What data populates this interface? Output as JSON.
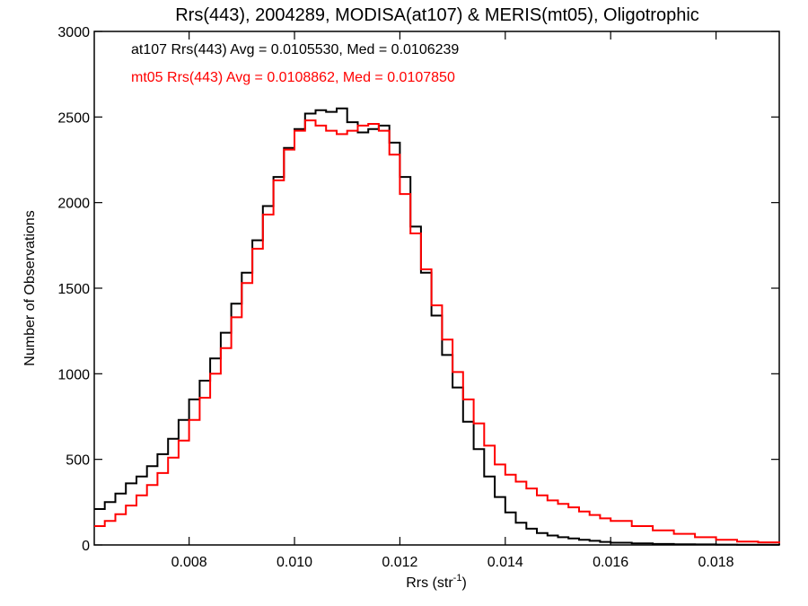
{
  "chart_data": {
    "type": "step",
    "title": "Rrs(443), 2004289, MODISA(at107) & MERIS(mt05), Oligotrophic",
    "xlabel_main": "Rrs (str",
    "xlabel_sup": "-1",
    "xlabel_end": ")",
    "ylabel": "Number of Observations",
    "xlim": [
      0.0062,
      0.0192
    ],
    "ylim": [
      0,
      3000
    ],
    "xticks": [
      "0.008",
      "0.010",
      "0.012",
      "0.014",
      "0.016",
      "0.018"
    ],
    "xtick_values": [
      0.008,
      0.01,
      0.012,
      0.014,
      0.016,
      0.018
    ],
    "yticks": [
      "0",
      "500",
      "1000",
      "1500",
      "2000",
      "2500",
      "3000"
    ],
    "ytick_values": [
      0,
      500,
      1000,
      1500,
      2000,
      2500,
      3000
    ],
    "grid": false,
    "annotations": [
      {
        "text": "at107 Rrs(443) Avg = 0.0105530, Med = 0.0106239",
        "color": "#000000"
      },
      {
        "text": "mt05 Rrs(443) Avg = 0.0108862, Med = 0.0107850",
        "color": "#ff0000"
      }
    ],
    "series": [
      {
        "color": "#000000",
        "x": [
          0.0062,
          0.0064,
          0.0066,
          0.0068,
          0.007,
          0.0072,
          0.0074,
          0.0076,
          0.0078,
          0.008,
          0.0082,
          0.0084,
          0.0086,
          0.0088,
          0.009,
          0.0092,
          0.0094,
          0.0096,
          0.0098,
          0.01,
          0.0102,
          0.0104,
          0.0106,
          0.0108,
          0.011,
          0.0112,
          0.0114,
          0.0116,
          0.0118,
          0.012,
          0.0122,
          0.0124,
          0.0126,
          0.0128,
          0.013,
          0.0132,
          0.0134,
          0.0136,
          0.0138,
          0.014,
          0.0142,
          0.0144,
          0.0146,
          0.0148,
          0.015,
          0.0152,
          0.0154,
          0.0156,
          0.0158,
          0.016,
          0.0164,
          0.0168,
          0.0172,
          0.0176,
          0.018,
          0.0184,
          0.0188,
          0.0192
        ],
        "y": [
          210,
          250,
          300,
          360,
          400,
          460,
          530,
          620,
          730,
          850,
          960,
          1090,
          1240,
          1410,
          1590,
          1780,
          1980,
          2150,
          2320,
          2430,
          2520,
          2540,
          2530,
          2550,
          2470,
          2410,
          2430,
          2450,
          2350,
          2150,
          1860,
          1590,
          1340,
          1110,
          920,
          720,
          560,
          400,
          280,
          190,
          130,
          95,
          70,
          55,
          45,
          38,
          30,
          24,
          18,
          13,
          9,
          6,
          4,
          3,
          2,
          1,
          1,
          0
        ]
      },
      {
        "color": "#ff0000",
        "x": [
          0.0062,
          0.0064,
          0.0066,
          0.0068,
          0.007,
          0.0072,
          0.0074,
          0.0076,
          0.0078,
          0.008,
          0.0082,
          0.0084,
          0.0086,
          0.0088,
          0.009,
          0.0092,
          0.0094,
          0.0096,
          0.0098,
          0.01,
          0.0102,
          0.0104,
          0.0106,
          0.0108,
          0.011,
          0.0112,
          0.0114,
          0.0116,
          0.0118,
          0.012,
          0.0122,
          0.0124,
          0.0126,
          0.0128,
          0.013,
          0.0132,
          0.0134,
          0.0136,
          0.0138,
          0.014,
          0.0142,
          0.0144,
          0.0146,
          0.0148,
          0.015,
          0.0152,
          0.0154,
          0.0156,
          0.0158,
          0.016,
          0.0164,
          0.0168,
          0.0172,
          0.0176,
          0.018,
          0.0184,
          0.0188,
          0.0192
        ],
        "y": [
          110,
          140,
          180,
          230,
          290,
          350,
          420,
          510,
          610,
          730,
          860,
          1000,
          1150,
          1330,
          1530,
          1730,
          1930,
          2130,
          2310,
          2420,
          2480,
          2450,
          2420,
          2400,
          2420,
          2450,
          2460,
          2420,
          2280,
          2050,
          1820,
          1610,
          1400,
          1200,
          1010,
          850,
          710,
          580,
          470,
          410,
          370,
          330,
          290,
          260,
          240,
          220,
          195,
          175,
          155,
          140,
          110,
          85,
          65,
          45,
          30,
          20,
          15,
          10
        ]
      }
    ]
  }
}
